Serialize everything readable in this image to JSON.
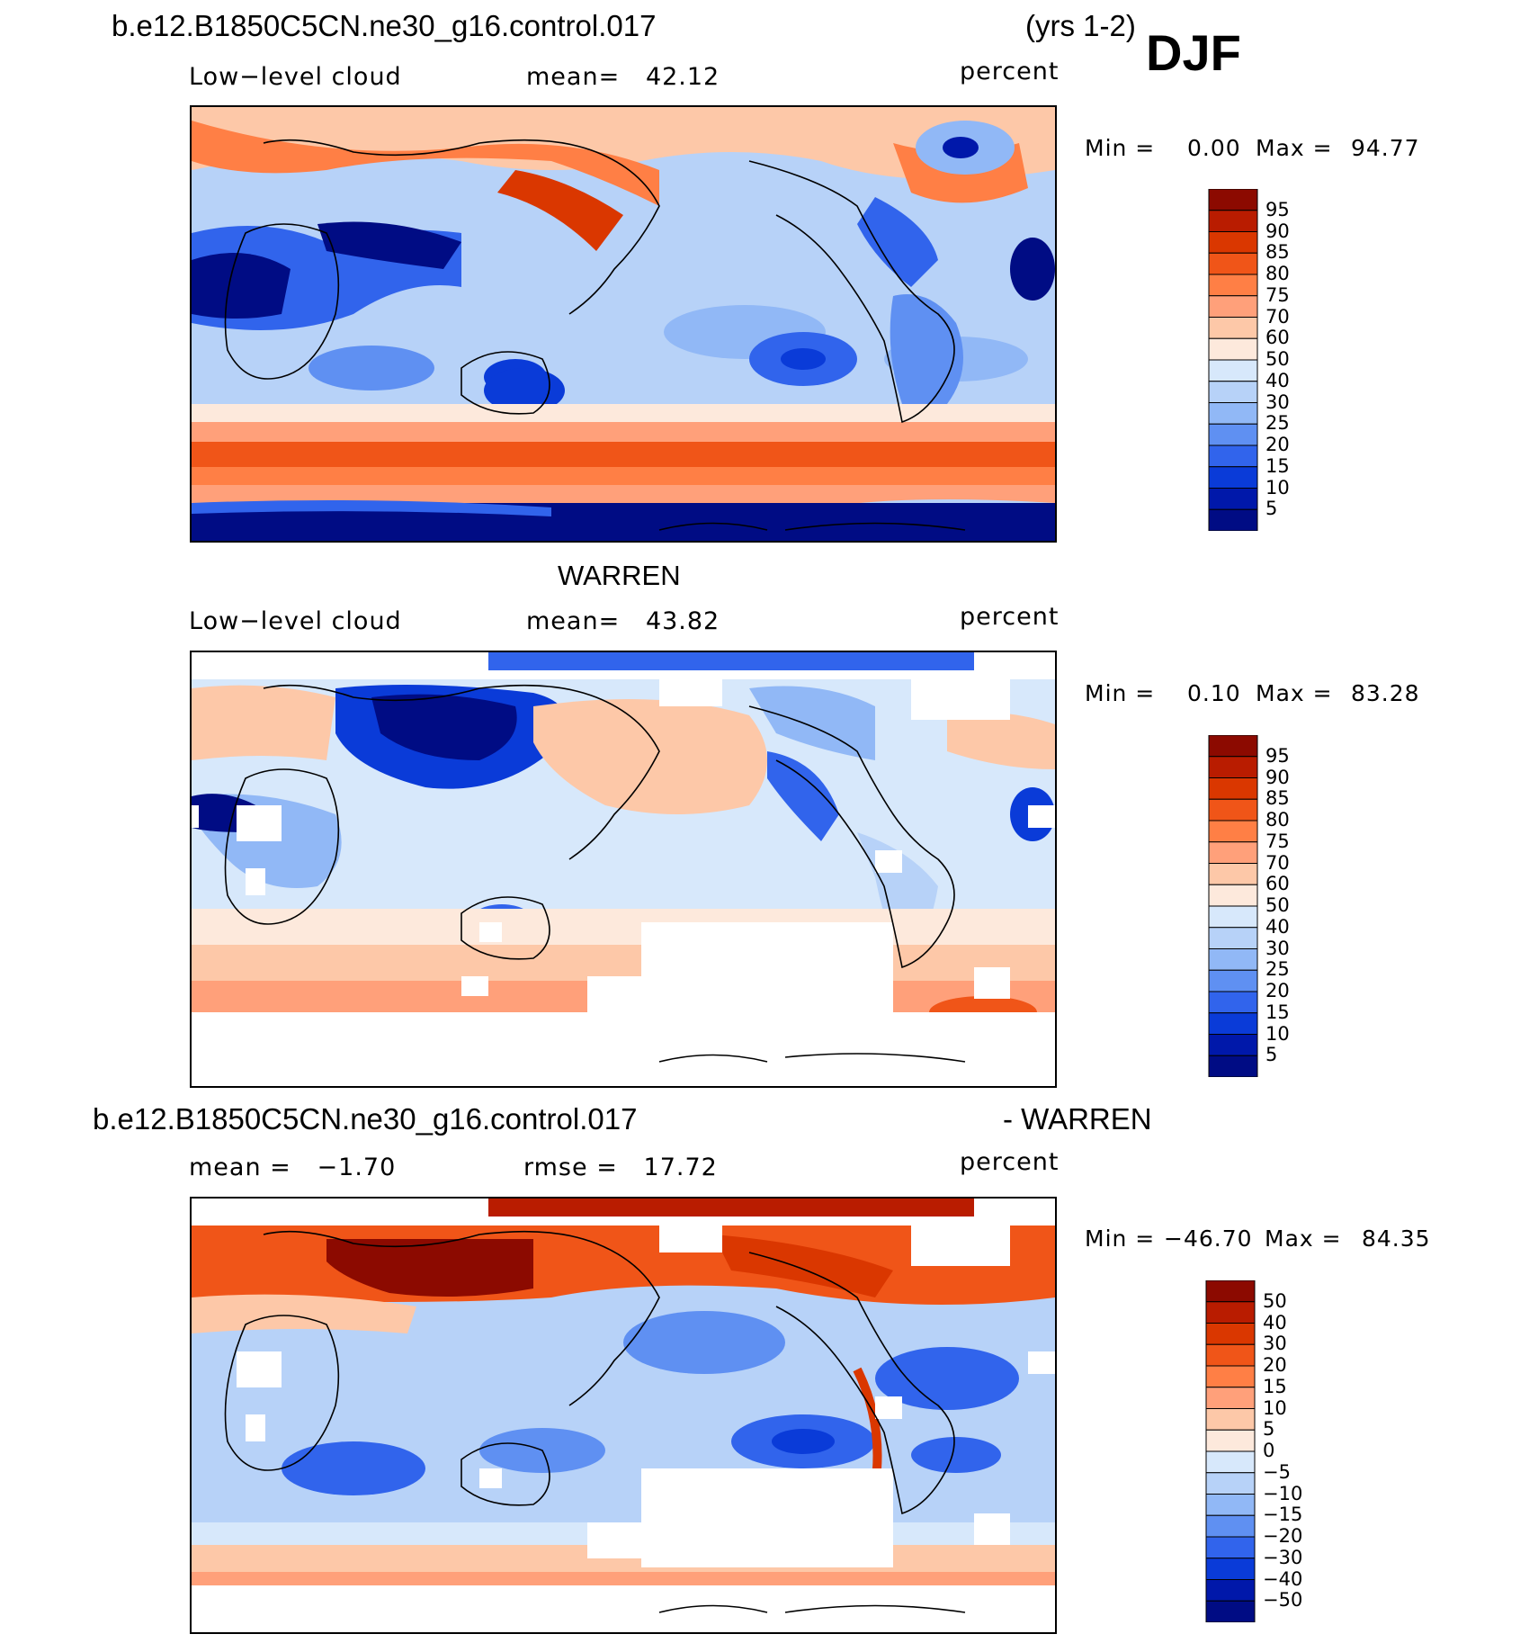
{
  "header": {
    "case_name": "b.e12.B1850C5CN.ne30_g16.control.017",
    "years": "(yrs 1-2)",
    "season": "DJF"
  },
  "panels": [
    {
      "id": "model",
      "title": "",
      "variable": "Low−level cloud",
      "stat_text": "mean=   42.12",
      "units": "percent",
      "minmax": {
        "min_label": "Min =",
        "min_value": "0.00",
        "max_label": "Max =",
        "max_value": "94.77"
      },
      "colorbar": {
        "labels": [
          "95",
          "90",
          "85",
          "80",
          "75",
          "70",
          "60",
          "50",
          "40",
          "30",
          "25",
          "20",
          "15",
          "10",
          "5"
        ],
        "colors": [
          "#8c0a00",
          "#b91c00",
          "#da3700",
          "#f05518",
          "#ff7f45",
          "#ffa07a",
          "#fdc8a8",
          "#fde9dc",
          "#d7e8fb",
          "#b7d2f8",
          "#91b8f6",
          "#5f90f2",
          "#3164ec",
          "#0a3bd8",
          "#0018aa",
          "#000c84"
        ]
      }
    },
    {
      "id": "obs",
      "title": "WARREN",
      "variable": "Low−level cloud",
      "stat_text": "mean=   43.82",
      "units": "percent",
      "minmax": {
        "min_label": "Min =",
        "min_value": "0.10",
        "max_label": "Max =",
        "max_value": "83.28"
      },
      "colorbar": {
        "labels": [
          "95",
          "90",
          "85",
          "80",
          "75",
          "70",
          "60",
          "50",
          "40",
          "30",
          "25",
          "20",
          "15",
          "10",
          "5"
        ],
        "colors": [
          "#8c0a00",
          "#b91c00",
          "#da3700",
          "#f05518",
          "#ff7f45",
          "#ffa07a",
          "#fdc8a8",
          "#fde9dc",
          "#d7e8fb",
          "#b7d2f8",
          "#91b8f6",
          "#5f90f2",
          "#3164ec",
          "#0a3bd8",
          "#0018aa",
          "#000c84"
        ]
      }
    },
    {
      "id": "diff",
      "title_left": "b.e12.B1850C5CN.ne30_g16.control.017",
      "title_right": "- WARREN",
      "stat_left": "mean =   −1.70",
      "stat_right": "rmse =   17.72",
      "units": "percent",
      "minmax": {
        "min_label": "Min =",
        "min_value": "−46.70",
        "max_label": "Max =",
        "max_value": "84.35"
      },
      "colorbar": {
        "labels": [
          "50",
          "40",
          "30",
          "20",
          "15",
          "10",
          "5",
          "0",
          "−5",
          "−10",
          "−15",
          "−20",
          "−30",
          "−40",
          "−50"
        ],
        "colors": [
          "#8c0a00",
          "#b91c00",
          "#da3700",
          "#f05518",
          "#ff7f45",
          "#ffa07a",
          "#fdc8a8",
          "#fde9dc",
          "#d7e8fb",
          "#b7d2f8",
          "#91b8f6",
          "#5f90f2",
          "#3164ec",
          "#0a3bd8",
          "#0018aa",
          "#000c84"
        ]
      }
    }
  ]
}
